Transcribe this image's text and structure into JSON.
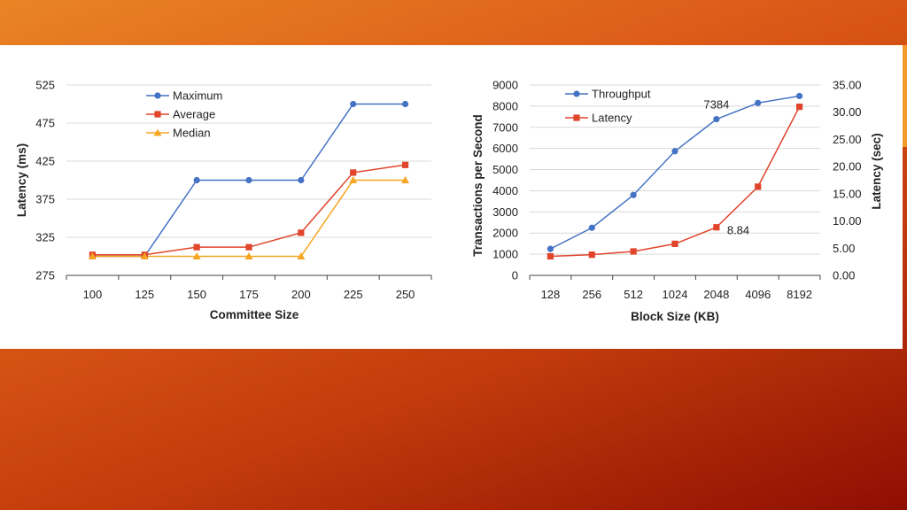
{
  "chart_data": [
    {
      "type": "line",
      "xlabel": "Committee Size",
      "ylabel": "Latency (ms)",
      "categories": [
        "100",
        "125",
        "150",
        "175",
        "200",
        "225",
        "250"
      ],
      "ylim": [
        275,
        525
      ],
      "yticks": [
        "275",
        "325",
        "375",
        "425",
        "475",
        "525"
      ],
      "grid": true,
      "legend": "top-left",
      "series": [
        {
          "name": "Maximum",
          "color": "#4472c4",
          "marker": "circle",
          "values": [
            300,
            300,
            400,
            400,
            400,
            500,
            500
          ]
        },
        {
          "name": "Average",
          "color": "#e0442a",
          "marker": "square",
          "values": [
            302,
            302,
            312,
            312,
            331,
            410,
            420
          ]
        },
        {
          "name": "Median",
          "color": "#f5a623",
          "marker": "triangle",
          "values": [
            300,
            300,
            300,
            300,
            300,
            400,
            400
          ]
        }
      ]
    },
    {
      "type": "line",
      "xlabel": "Block Size (KB)",
      "ylabel": "Transactions per Second",
      "y2label": "Latency (sec)",
      "categories": [
        "128",
        "256",
        "512",
        "1024",
        "2048",
        "4096",
        "8192"
      ],
      "ylim": [
        0,
        9000
      ],
      "y2lim": [
        0,
        35
      ],
      "yticks": [
        "0",
        "1000",
        "2000",
        "3000",
        "4000",
        "5000",
        "6000",
        "7000",
        "8000",
        "9000"
      ],
      "y2ticks": [
        "0.00",
        "5.00",
        "10.00",
        "15.00",
        "20.00",
        "25.00",
        "30.00",
        "35.00"
      ],
      "grid": true,
      "legend": "top-left",
      "series": [
        {
          "name": "Throughput",
          "axis": "left",
          "color": "#4472c4",
          "marker": "circle",
          "values": [
            1250,
            2250,
            3800,
            5870,
            7384,
            8150,
            8480
          ]
        },
        {
          "name": "Latency",
          "axis": "right",
          "color": "#e0442a",
          "marker": "square",
          "values": [
            3.5,
            3.8,
            4.4,
            5.8,
            8.84,
            16.3,
            31.0
          ]
        }
      ],
      "annotations": [
        {
          "series": 0,
          "index": 4,
          "text": "7384"
        },
        {
          "series": 1,
          "index": 4,
          "text": "8.84"
        }
      ]
    }
  ]
}
